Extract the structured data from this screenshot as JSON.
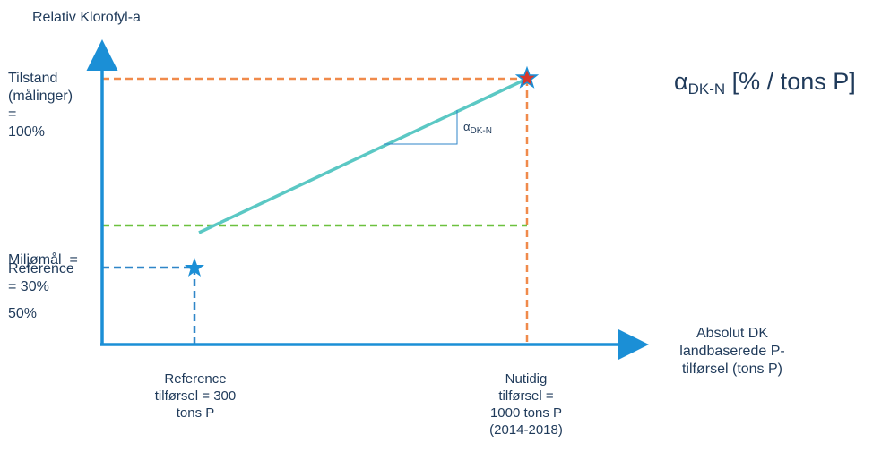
{
  "y_axis_title": "Relativ Klorofyl-a",
  "x_axis_title": [
    "Absolut DK",
    "landbaserede P-",
    "tilførsel (tons P)"
  ],
  "y_labels": {
    "tilstand": [
      "Tilstand",
      "(målinger)",
      "=",
      "100%"
    ],
    "miljomal": [
      "Miljømål  =",
      "50%"
    ],
    "reference": [
      "Reference",
      "= 30%"
    ]
  },
  "x_labels": {
    "reference": [
      "Reference",
      "tilførsel = 300",
      "tons P"
    ],
    "nutidig": [
      "Nutidig",
      "tilførsel =",
      "1000 tons P",
      "(2014-2018)"
    ]
  },
  "formula": {
    "symbol": "α",
    "subscript": "DK-N",
    "unit": " [% / tons P]"
  },
  "slope_label": {
    "symbol": "α",
    "subscript": "DK-N"
  },
  "colors": {
    "axis": "#1b8fd6",
    "trend": "#5bc8c4",
    "tilstand_guide": "#f08a4b",
    "miljomal_guide": "#6cc13f",
    "reference_guide": "#2f86c8",
    "star_blue": "#1b8fd6",
    "star_red": "#d9362b",
    "text": "#1f3a5a"
  },
  "points": {
    "reference": {
      "load_tons_p": 300,
      "relative_chl_pct": 30,
      "marker": "star"
    },
    "current": {
      "load_tons_p": 1000,
      "relative_chl_pct": 100,
      "marker": "star"
    }
  },
  "target_pct": 50
}
